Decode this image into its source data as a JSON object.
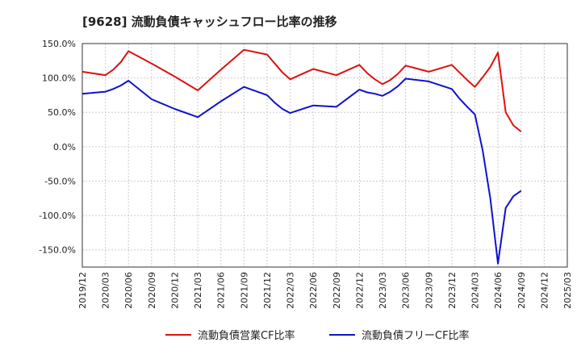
{
  "chart_data": {
    "type": "line",
    "title": "[9628]  流動負債キャッシュフロー比率の推移",
    "xlabel": "",
    "ylabel": "",
    "ylim": [
      -175,
      150
    ],
    "y_ticks": [
      150,
      100,
      50,
      0,
      -50,
      -100,
      -150
    ],
    "y_tick_labels": [
      "150.0%",
      "100.0%",
      "50.0%",
      "0.0%",
      "-50.0%",
      "-100.0%",
      "-150.0%"
    ],
    "x_tick_labels": [
      "2019/12",
      "2020/03",
      "2020/06",
      "2020/09",
      "2020/12",
      "2021/03",
      "2021/06",
      "2021/09",
      "2021/12",
      "2022/03",
      "2022/06",
      "2022/09",
      "2022/12",
      "2023/03",
      "2023/06",
      "2023/09",
      "2023/12",
      "2024/03",
      "2024/06",
      "2024/09",
      "2024/12",
      "2025/03"
    ],
    "grid": true,
    "legend_position": "bottom",
    "series": [
      {
        "name": "流動負債営業CF比率",
        "color": "#dd1111",
        "x": [
          "2019/12",
          "2020/03",
          "2020/04",
          "2020/05",
          "2020/06",
          "2020/09",
          "2020/12",
          "2021/03",
          "2021/06",
          "2021/09",
          "2021/12",
          "2022/01",
          "2022/02",
          "2022/03",
          "2022/06",
          "2022/09",
          "2022/12",
          "2023/01",
          "2023/02",
          "2023/03",
          "2023/04",
          "2023/05",
          "2023/06",
          "2023/09",
          "2023/12",
          "2024/01",
          "2024/02",
          "2024/03",
          "2024/04",
          "2024/05",
          "2024/06",
          "2024/07",
          "2024/08",
          "2024/09"
        ],
        "values": [
          109,
          104,
          112,
          123,
          139,
          121,
          102,
          82,
          112,
          141,
          134,
          121,
          108,
          98,
          113,
          104,
          119,
          107,
          98,
          91,
          97,
          106,
          118,
          109,
          119,
          108,
          97,
          87,
          101,
          116,
          137,
          50,
          31,
          22
        ]
      },
      {
        "name": "流動負債フリーCF比率",
        "color": "#1111cc",
        "x": [
          "2019/12",
          "2020/03",
          "2020/04",
          "2020/05",
          "2020/06",
          "2020/09",
          "2020/12",
          "2021/03",
          "2021/06",
          "2021/09",
          "2021/12",
          "2022/01",
          "2022/02",
          "2022/03",
          "2022/06",
          "2022/09",
          "2022/12",
          "2023/01",
          "2023/02",
          "2023/03",
          "2023/04",
          "2023/05",
          "2023/06",
          "2023/09",
          "2023/12",
          "2024/01",
          "2024/02",
          "2024/03",
          "2024/04",
          "2024/05",
          "2024/06",
          "2024/07",
          "2024/08",
          "2024/09"
        ],
        "values": [
          77,
          80,
          84,
          89,
          96,
          69,
          55,
          43,
          66,
          87,
          75,
          64,
          55,
          49,
          60,
          58,
          83,
          79,
          77,
          74,
          80,
          88,
          99,
          95,
          84,
          70,
          58,
          47,
          -5,
          -75,
          -170,
          -89,
          -72,
          -64
        ]
      }
    ]
  }
}
